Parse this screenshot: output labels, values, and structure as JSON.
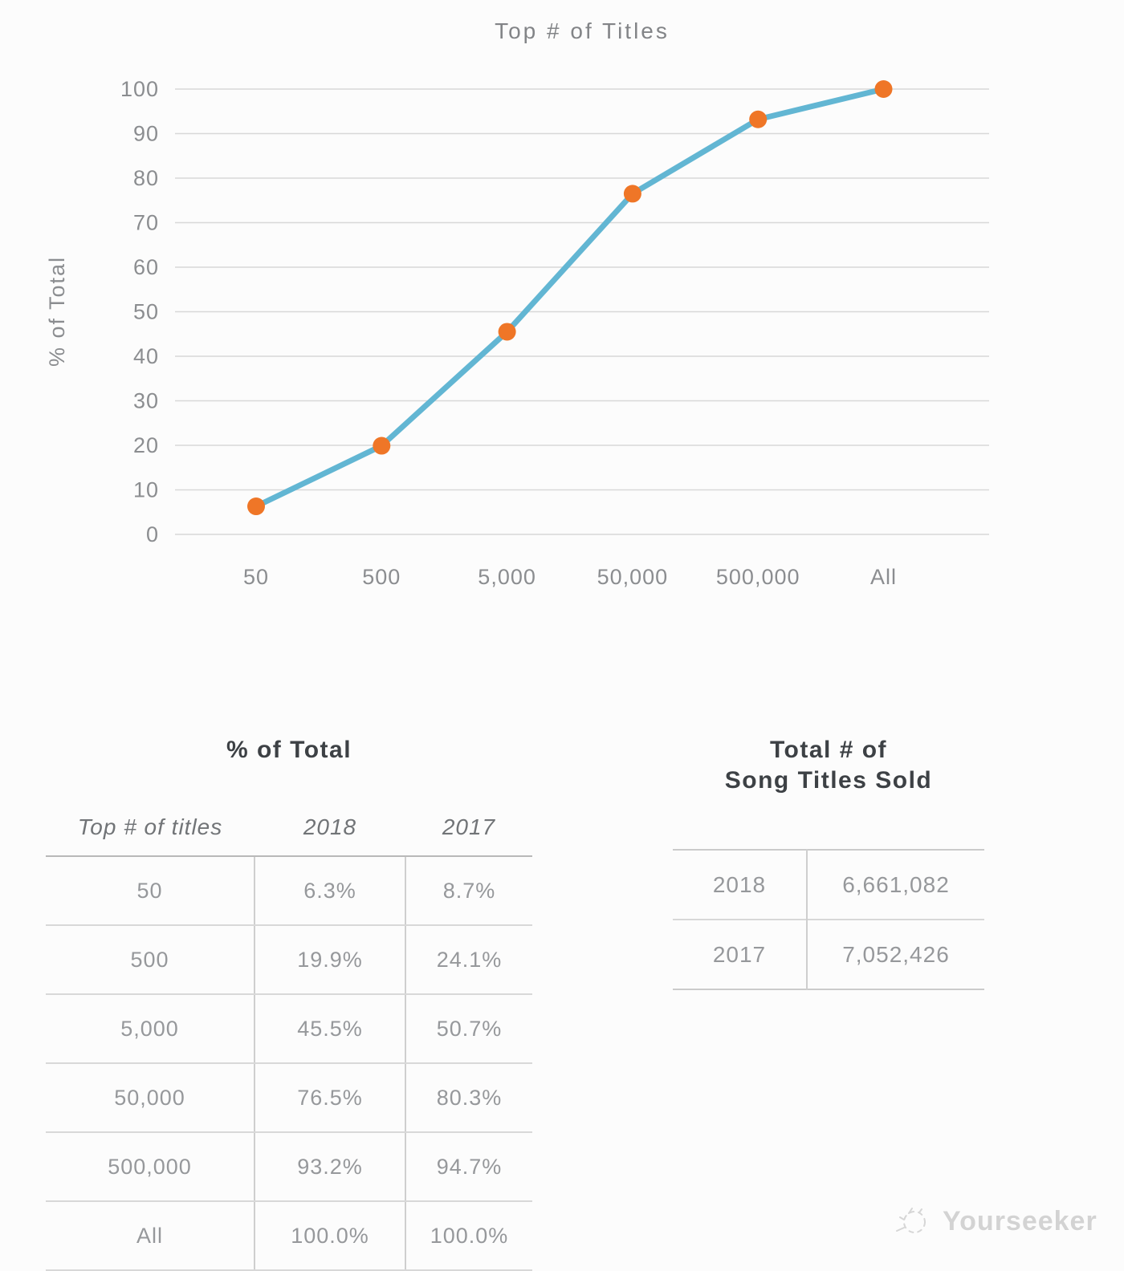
{
  "chart_data": {
    "type": "line",
    "title": "Top # of Titles",
    "xlabel": "",
    "ylabel": "% of Total",
    "categories": [
      "50",
      "500",
      "5,000",
      "50,000",
      "500,000",
      "All"
    ],
    "series": [
      {
        "name": "2018",
        "values": [
          6.3,
          19.9,
          45.5,
          76.5,
          93.2,
          100.0
        ]
      }
    ],
    "ylim": [
      0,
      100
    ],
    "ytick_step": 10,
    "grid": true,
    "legend": "none",
    "line_color": "#62b6d3",
    "marker_color": "#ef7627",
    "gridline_color": "#d8d8d8"
  },
  "tables": {
    "percent_of_total": {
      "title": "% of Total",
      "columns": {
        "c0": "Top # of titles",
        "c1": "2018",
        "c2": "2017"
      },
      "rows": [
        {
          "label": "50",
          "y2018": "6.3%",
          "y2017": "8.7%"
        },
        {
          "label": "500",
          "y2018": "19.9%",
          "y2017": "24.1%"
        },
        {
          "label": "5,000",
          "y2018": "45.5%",
          "y2017": "50.7%"
        },
        {
          "label": "50,000",
          "y2018": "76.5%",
          "y2017": "80.3%"
        },
        {
          "label": "500,000",
          "y2018": "93.2%",
          "y2017": "94.7%"
        },
        {
          "label": "All",
          "y2018": "100.0%",
          "y2017": "100.0%"
        }
      ]
    },
    "titles_sold": {
      "title_line1": "Total # of",
      "title_line2": "Song Titles Sold",
      "rows": [
        {
          "year": "2018",
          "value": "6,661,082"
        },
        {
          "year": "2017",
          "value": "7,052,426"
        }
      ]
    }
  },
  "watermark": {
    "label": "Yourseeker",
    "icon": "sketch-circle-logo"
  }
}
